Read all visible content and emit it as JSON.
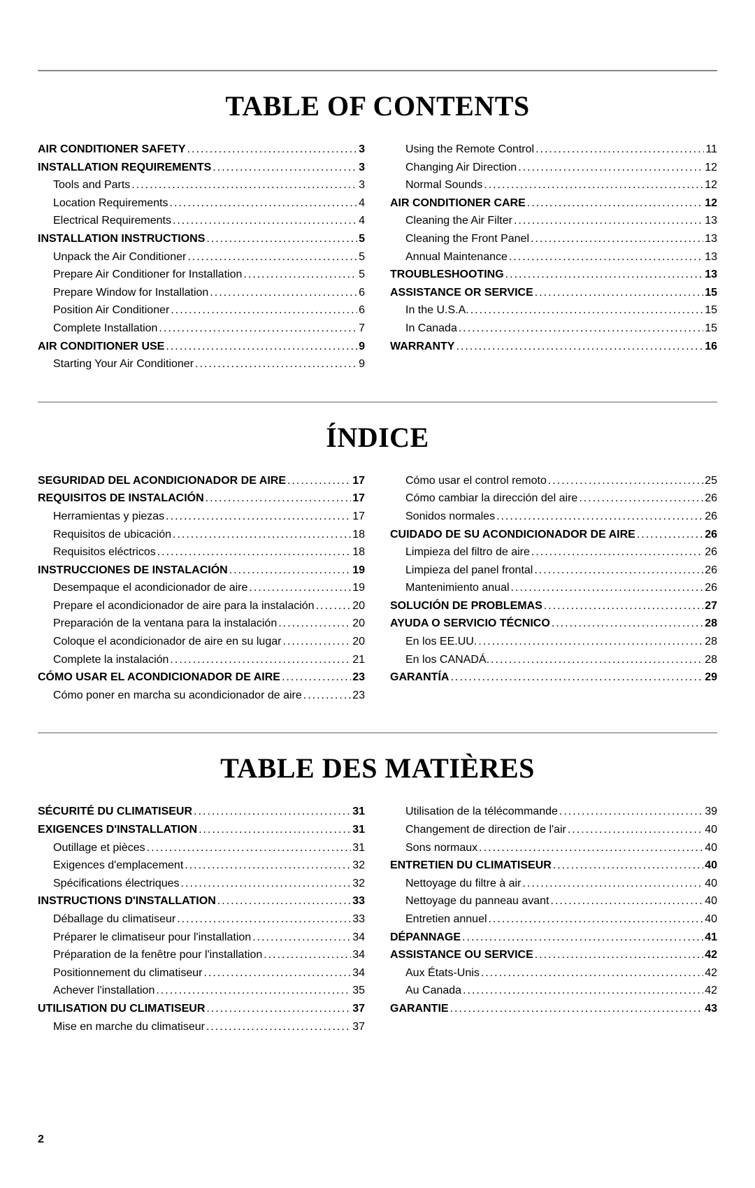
{
  "page_number": "2",
  "sections": [
    {
      "title": "TABLE OF CONTENTS",
      "left": [
        {
          "label": "AIR  CONDITIONER  SAFETY",
          "page": "3",
          "level": "top"
        },
        {
          "label": "INSTALLATION   REQUIREMENTS",
          "page": "3",
          "level": "top"
        },
        {
          "label": "Tools  and  Parts",
          "page": "3",
          "level": "sub"
        },
        {
          "label": "Location  Requirements",
          "page": "4",
          "level": "sub"
        },
        {
          "label": "Electrical  Requirements",
          "page": "4",
          "level": "sub"
        },
        {
          "label": "INSTALLATION   INSTRUCTIONS",
          "page": "5",
          "level": "top"
        },
        {
          "label": "Unpack  the  Air  Conditioner",
          "page": "5",
          "level": "sub"
        },
        {
          "label": "Prepare Air Conditioner for Installation",
          "page": "5",
          "level": "sub"
        },
        {
          "label": "Prepare Window for Installation",
          "page": "6",
          "level": "sub"
        },
        {
          "label": "Position  Air  Conditioner",
          "page": "6",
          "level": "sub"
        },
        {
          "label": "Complete  Installation",
          "page": "7",
          "level": "sub"
        },
        {
          "label": "AIR  CONDITIONER  USE",
          "page": "9",
          "level": "top"
        },
        {
          "label": "Starting  Your  Air  Conditioner",
          "page": "9",
          "level": "sub"
        }
      ],
      "right": [
        {
          "label": "Using  the  Remote  Control",
          "page": "11",
          "level": "sub"
        },
        {
          "label": "Changing  Air  Direction",
          "page": "12",
          "level": "sub"
        },
        {
          "label": "Normal  Sounds",
          "page": "12",
          "level": "sub"
        },
        {
          "label": "AIR  CONDITIONER  CARE",
          "page": "12",
          "level": "top"
        },
        {
          "label": "Cleaning the  Air  Filter",
          "page": "13",
          "level": "sub"
        },
        {
          "label": "Cleaning the Front Panel",
          "page": "13",
          "level": "sub"
        },
        {
          "label": "Annual  Maintenance",
          "page": "13",
          "level": "sub"
        },
        {
          "label": "TROUBLESHOOTING",
          "page": "13",
          "level": "top"
        },
        {
          "label": "ASSISTANCE  OR  SERVICE",
          "page": "15",
          "level": "top"
        },
        {
          "label": "In  the  U.S.A.",
          "page": "15",
          "level": "sub"
        },
        {
          "label": "In  Canada",
          "page": "15",
          "level": "sub"
        },
        {
          "label": "WARRANTY",
          "page": "16",
          "level": "top"
        }
      ]
    },
    {
      "title": "ÍNDICE",
      "left": [
        {
          "label": "SEGURIDAD DEL ACONDICIONADOR DE AIRE",
          "page": "17",
          "level": "top"
        },
        {
          "label": "REQUISITOS  DE  INSTALACIÓN",
          "page": "17",
          "level": "top"
        },
        {
          "label": "Herramientas  y  piezas",
          "page": "17",
          "level": "sub"
        },
        {
          "label": "Requisitos de ubicación",
          "page": "18",
          "level": "sub"
        },
        {
          "label": "Requisitos  eléctricos",
          "page": "18",
          "level": "sub"
        },
        {
          "label": "INSTRUCCIONES  DE  INSTALACIÓN",
          "page": "19",
          "level": "top"
        },
        {
          "label": "Desempaque el acondicionador de aire",
          "page": "19",
          "level": "sub"
        },
        {
          "label": "Prepare el acondicionador de aire para la instalación",
          "page": "20",
          "level": "sub"
        },
        {
          "label": "Preparación de la ventana para la instalación",
          "page": "20",
          "level": "sub"
        },
        {
          "label": "Coloque el acondicionador de aire en su lugar",
          "page": "20",
          "level": "sub"
        },
        {
          "label": "Complete la instalación",
          "page": "21",
          "level": "sub"
        },
        {
          "label": "CÓMO USAR EL ACONDICIONADOR DE AIRE",
          "page": "23",
          "level": "top"
        },
        {
          "label": "Cómo poner en marcha su acondicionador de aire",
          "page": "23",
          "level": "sub"
        }
      ],
      "right": [
        {
          "label": "Cómo usar el control remoto",
          "page": "25",
          "level": "sub"
        },
        {
          "label": "Cómo cambiar la dirección del aire",
          "page": "26",
          "level": "sub"
        },
        {
          "label": "Sonidos normales",
          "page": "26",
          "level": "sub"
        },
        {
          "label": "CUIDADO DE SU ACONDICIONADOR DE AIRE",
          "page": "26",
          "level": "top"
        },
        {
          "label": "Limpieza del filtro de aire",
          "page": "26",
          "level": "sub"
        },
        {
          "label": "Limpieza del panel frontal",
          "page": "26",
          "level": "sub"
        },
        {
          "label": "Mantenimiento anual",
          "page": "26",
          "level": "sub"
        },
        {
          "label": "SOLUCIÓN  DE  PROBLEMAS",
          "page": "27",
          "level": "top"
        },
        {
          "label": "AYUDA O SERVICIO TÉCNICO",
          "page": "28",
          "level": "top"
        },
        {
          "label": "En los EE.UU.",
          "page": "28",
          "level": "sub"
        },
        {
          "label": "En  los  CANADÁ.",
          "page": "28",
          "level": "sub"
        },
        {
          "label": "GARANTÍA",
          "page": "29",
          "level": "top"
        }
      ]
    },
    {
      "title": "TABLE DES MATIÈRES",
      "left": [
        {
          "label": "SÉCURITÉ  DU  CLIMATISEUR",
          "page": "31",
          "level": "top"
        },
        {
          "label": "EXIGENCES   D'INSTALLATION",
          "page": "31",
          "level": "top"
        },
        {
          "label": "Outillage  et  pièces",
          "page": "31",
          "level": "sub"
        },
        {
          "label": "Exigences  d'emplacement",
          "page": "32",
          "level": "sub"
        },
        {
          "label": "Spécifications  électriques",
          "page": "32",
          "level": "sub"
        },
        {
          "label": "INSTRUCTIONS   D'INSTALLATION",
          "page": "33",
          "level": "top"
        },
        {
          "label": "Déballage  du  climatiseur",
          "page": "33",
          "level": "sub"
        },
        {
          "label": "Préparer  le  climatiseur  pour  l'installation",
          "page": "34",
          "level": "sub"
        },
        {
          "label": "Préparation de la fenêtre pour l'installation",
          "page": "34",
          "level": "sub"
        },
        {
          "label": "Positionnement du climatiseur",
          "page": "34",
          "level": "sub"
        },
        {
          "label": "Achever  l'installation",
          "page": "35",
          "level": "sub"
        },
        {
          "label": "UTILISATION  DU  CLIMATISEUR",
          "page": "37",
          "level": "top"
        },
        {
          "label": "Mise en marche du climatiseur",
          "page": "37",
          "level": "sub"
        }
      ],
      "right": [
        {
          "label": "Utilisation  de  la  télécommande",
          "page": "39",
          "level": "sub"
        },
        {
          "label": "Changement de direction de l'air",
          "page": "40",
          "level": "sub"
        },
        {
          "label": "Sons  normaux",
          "page": "40",
          "level": "sub"
        },
        {
          "label": "ENTRETIEN  DU  CLIMATISEUR",
          "page": "40",
          "level": "top"
        },
        {
          "label": "Nettoyage du filtre à air",
          "page": "40",
          "level": "sub"
        },
        {
          "label": "Nettoyage du panneau avant",
          "page": "40",
          "level": "sub"
        },
        {
          "label": "Entretien annuel",
          "page": "40",
          "level": "sub"
        },
        {
          "label": "DÉPANNAGE",
          "page": "41",
          "level": "top"
        },
        {
          "label": "ASSISTANCE OU SERVICE",
          "page": "42",
          "level": "top"
        },
        {
          "label": "Aux  États-Unis",
          "page": "42",
          "level": "sub"
        },
        {
          "label": "Au Canada",
          "page": "42",
          "level": "sub"
        },
        {
          "label": "GARANTIE",
          "page": "43",
          "level": "top"
        }
      ]
    }
  ]
}
